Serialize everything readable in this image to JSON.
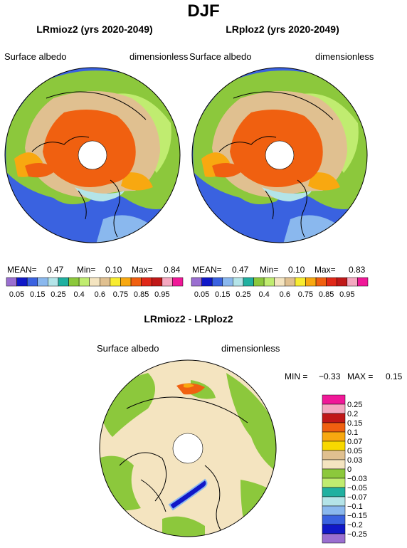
{
  "page_title": "DJF",
  "panel_left": {
    "title": "LRmioz2 (yrs 2020-2049)",
    "variable": "Surface albedo",
    "units": "dimensionless",
    "stats": {
      "mean_label": "MEAN=",
      "mean": "0.47",
      "min_label": "Min=",
      "min": "0.10",
      "max_label": "Max=",
      "max": "0.84"
    }
  },
  "panel_right": {
    "title": "LRploz2 (yrs 2020-2049)",
    "variable": "Surface albedo",
    "units": "dimensionless",
    "stats": {
      "mean_label": "MEAN=",
      "mean": "0.47",
      "min_label": "Min=",
      "min": "0.10",
      "max_label": "Max=",
      "max": "0.83"
    }
  },
  "albedo_colorbar": {
    "labels": [
      "0.05",
      "0.15",
      "0.25",
      "0.4",
      "0.6",
      "0.75",
      "0.85",
      "0.95"
    ],
    "colors": [
      "#9a6fd0",
      "#1018c8",
      "#3a62e0",
      "#8ab8ee",
      "#b4e4e8",
      "#20b0a0",
      "#8cc83c",
      "#c0ec70",
      "#f4e4c0",
      "#e0c090",
      "#f8ec30",
      "#f8a810",
      "#f06010",
      "#e02818",
      "#c01818",
      "#f4a8c0",
      "#f01898"
    ]
  },
  "panel_diff": {
    "title": "LRmioz2 - LRploz2",
    "variable": "Surface albedo",
    "units": "dimensionless",
    "stats": {
      "min_label": "MIN =",
      "min": "−0.33",
      "max_label": "MAX =",
      "max": "0.15"
    }
  },
  "diff_colorbar": {
    "labels": [
      "0.25",
      "0.2",
      "0.15",
      "0.1",
      "0.07",
      "0.05",
      "0.03",
      "0",
      "−0.03",
      "−0.05",
      "−0.07",
      "−0.1",
      "−0.15",
      "−0.2",
      "−0.25"
    ],
    "colors": [
      "#f01898",
      "#f4a8c0",
      "#c01818",
      "#f06010",
      "#f8a810",
      "#f8d800",
      "#e0c090",
      "#f4e4c0",
      "#8cc83c",
      "#c0ec70",
      "#20b0a0",
      "#b4e4e8",
      "#8ab8ee",
      "#3a62e0",
      "#1018c8",
      "#9a6fd0"
    ]
  },
  "colors": {
    "ocean": "#3a62e0",
    "snow_core": "#f06010",
    "land_tan": "#e0c090",
    "land_green": "#8cc83c",
    "diff_background": "#f4e4c0"
  }
}
